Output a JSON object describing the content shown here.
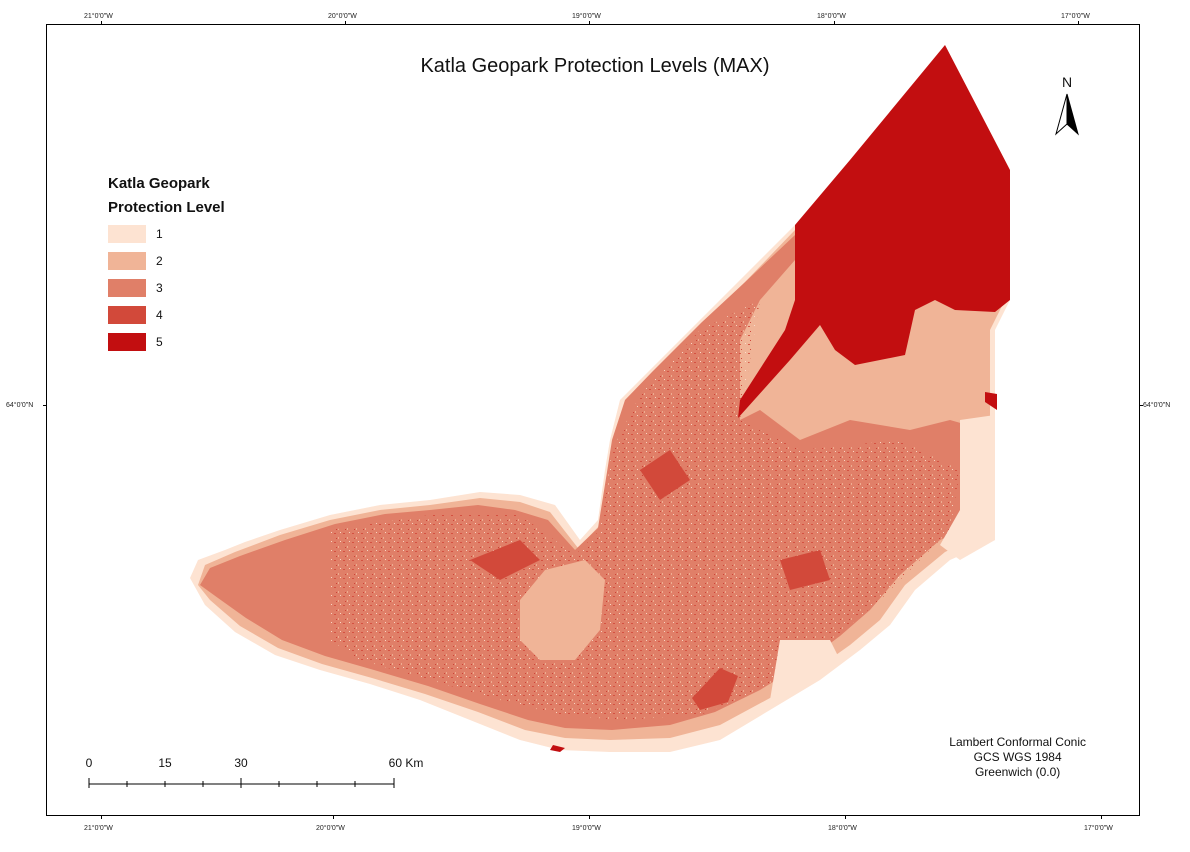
{
  "title": "Katla Geopark Protection Levels (MAX)",
  "graticule": {
    "top": [
      "21°0'0\"W",
      "20°0'0\"W",
      "19°0'0\"W",
      "18°0'0\"W",
      "17°0'0\"W"
    ],
    "bottom": [
      "21°0'0\"W",
      "20°0'0\"W",
      "19°0'0\"W",
      "18°0'0\"W",
      "17°0'0\"W"
    ],
    "left": "64°0'0\"N",
    "right": "64°0'0\"N"
  },
  "legend": {
    "title_line1": "Katla Geopark",
    "title_line2": "Protection Level",
    "items": [
      {
        "label": "1",
        "color": "#fde3d2"
      },
      {
        "label": "2",
        "color": "#f0b497"
      },
      {
        "label": "3",
        "color": "#e07f68"
      },
      {
        "label": "4",
        "color": "#d2493a"
      },
      {
        "label": "5",
        "color": "#c20e10"
      }
    ]
  },
  "north_arrow": {
    "label": "N",
    "icon": "north-arrow-icon"
  },
  "scale_bar": {
    "labels": [
      "0",
      "15",
      "30",
      "60 Km"
    ]
  },
  "projection": {
    "line1": "Lambert Conformal Conic",
    "line2": "GCS WGS 1984",
    "line3": "Greenwich (0.0)"
  }
}
